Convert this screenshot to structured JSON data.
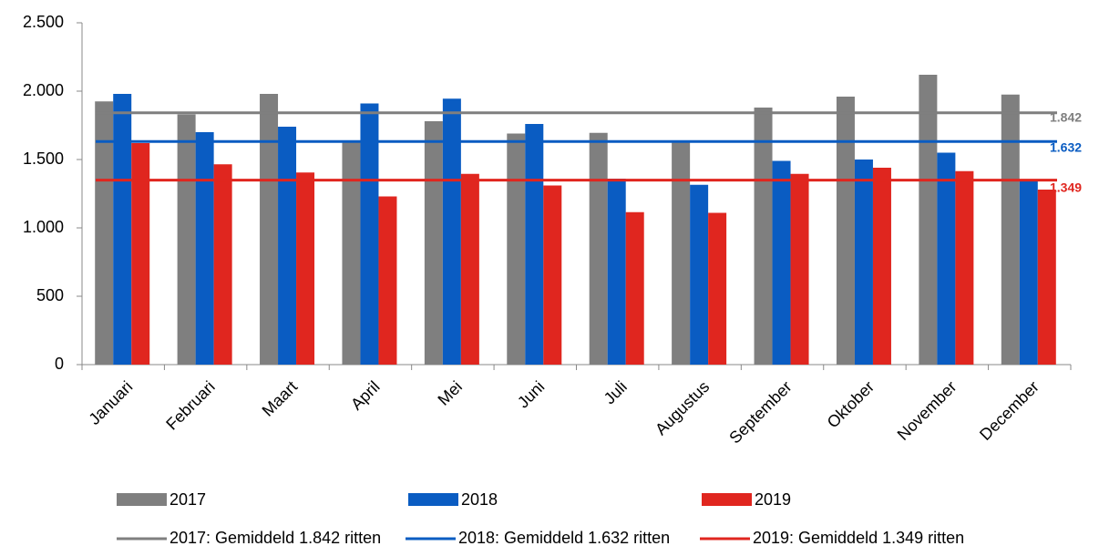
{
  "chart_data": {
    "type": "bar",
    "categories": [
      "Januari",
      "Februari",
      "Maart",
      "April",
      "Mei",
      "Juni",
      "Juli",
      "Augustus",
      "September",
      "Oktober",
      "November",
      "December"
    ],
    "series": [
      {
        "name": "2017",
        "color": "#7f7f7f",
        "values": [
          1925,
          1830,
          1980,
          1625,
          1780,
          1690,
          1695,
          1630,
          1880,
          1960,
          2120,
          1975
        ]
      },
      {
        "name": "2018",
        "color": "#0a5cc2",
        "values": [
          1980,
          1700,
          1740,
          1910,
          1945,
          1760,
          1360,
          1315,
          1490,
          1500,
          1550,
          1345
        ]
      },
      {
        "name": "2019",
        "color": "#e0261f",
        "values": [
          1620,
          1465,
          1405,
          1230,
          1395,
          1310,
          1115,
          1110,
          1395,
          1440,
          1415,
          1280
        ]
      }
    ],
    "averages": [
      {
        "name": "2017: Gemiddeld 1.842 ritten",
        "color": "#7f7f7f",
        "values": [
          1842
        ],
        "value_labels": [
          "1.842"
        ]
      },
      {
        "name": "2018: Gemiddeld 1.632 ritten",
        "color": "#0a5cc2",
        "values": [
          1632
        ],
        "value_labels": [
          "1.632"
        ]
      },
      {
        "name": "2019: Gemiddeld 1.349 ritten",
        "color": "#e0261f",
        "values": [
          1349
        ],
        "value_labels": [
          "1.349"
        ]
      }
    ],
    "ylim": [
      0,
      2500
    ],
    "yticks": [
      0,
      500,
      {
        "value": 1000,
        "label": "1.000"
      },
      {
        "value": 1500,
        "label": "1.500"
      },
      {
        "value": 2000,
        "label": "2.000"
      },
      {
        "value": 2500,
        "label": "2.500"
      }
    ],
    "grid": false
  }
}
